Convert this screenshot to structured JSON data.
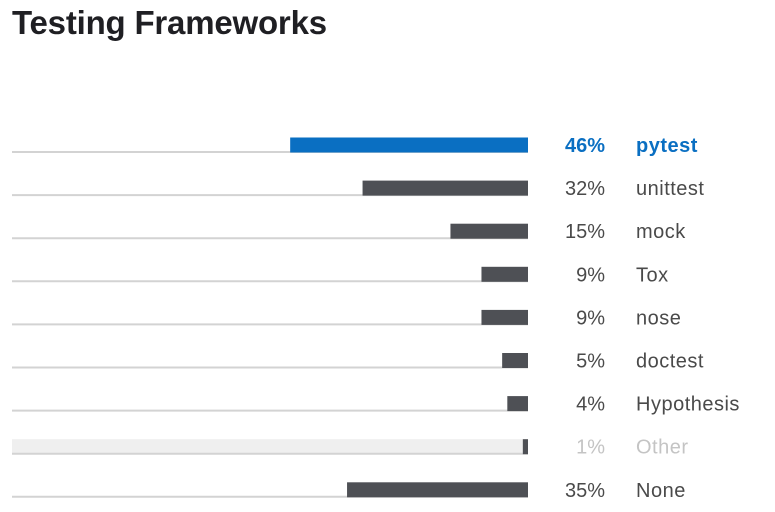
{
  "page": {
    "title": "Testing Frameworks"
  },
  "chart_data": {
    "type": "bar",
    "orientation": "horizontal",
    "title": "Testing Frameworks",
    "xlabel": "",
    "ylabel": "",
    "xlim": [
      0,
      50
    ],
    "grid": false,
    "legend": "none",
    "categories": [
      "pytest",
      "unittest",
      "mock",
      "Tox",
      "nose",
      "doctest",
      "Hypothesis",
      "Other",
      "None"
    ],
    "values": [
      46,
      32,
      15,
      9,
      9,
      5,
      4,
      1,
      35
    ],
    "value_labels": [
      "46%",
      "32%",
      "15%",
      "9%",
      "9%",
      "5%",
      "4%",
      "1%",
      "35%"
    ],
    "styles": [
      "highlight",
      "normal",
      "normal",
      "normal",
      "normal",
      "normal",
      "normal",
      "muted",
      "normal"
    ],
    "colors": {
      "highlight": "#0a6fc2",
      "normal_bar": "#4e5055",
      "normal_text": "#4a4a4a",
      "muted_bar": "#4e5055",
      "muted_text": "#c4c4c4",
      "muted_band": "#efefef",
      "track": "#d3d3d3"
    }
  }
}
